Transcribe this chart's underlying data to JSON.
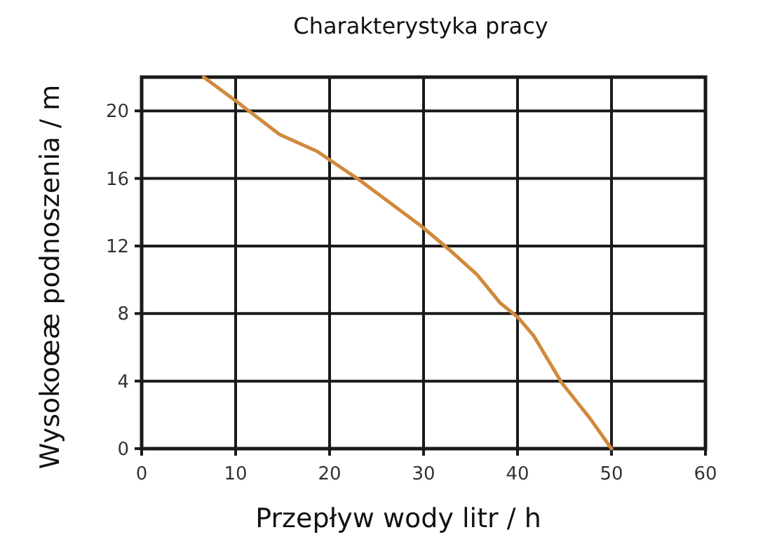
{
  "chart_data": {
    "type": "line",
    "title": "Charakterystyka pracy",
    "xlabel": "Przepływ wody litr / h",
    "ylabel": "Wysokoœæ podnoszenia / m",
    "series": [
      {
        "color": "#d08a3c",
        "x": [
          6.6,
          10,
          14.7,
          18.7,
          20,
          23.2,
          29.7,
          32.7,
          35.7,
          38.2,
          40,
          41.7,
          44.7,
          47.7,
          50
        ],
        "values": [
          22,
          20.6,
          18.6,
          17.6,
          17.1,
          15.9,
          13.2,
          11.8,
          10.3,
          8.6,
          7.8,
          6.7,
          3.9,
          1.8,
          0
        ]
      }
    ],
    "xlim": [
      0,
      60
    ],
    "xticks": [
      0,
      10,
      20,
      30,
      40,
      50,
      60
    ],
    "ylim": [
      0,
      22
    ],
    "yticks": [
      0,
      4,
      8,
      12,
      16,
      20
    ],
    "grid": true,
    "line_style": "solid"
  }
}
